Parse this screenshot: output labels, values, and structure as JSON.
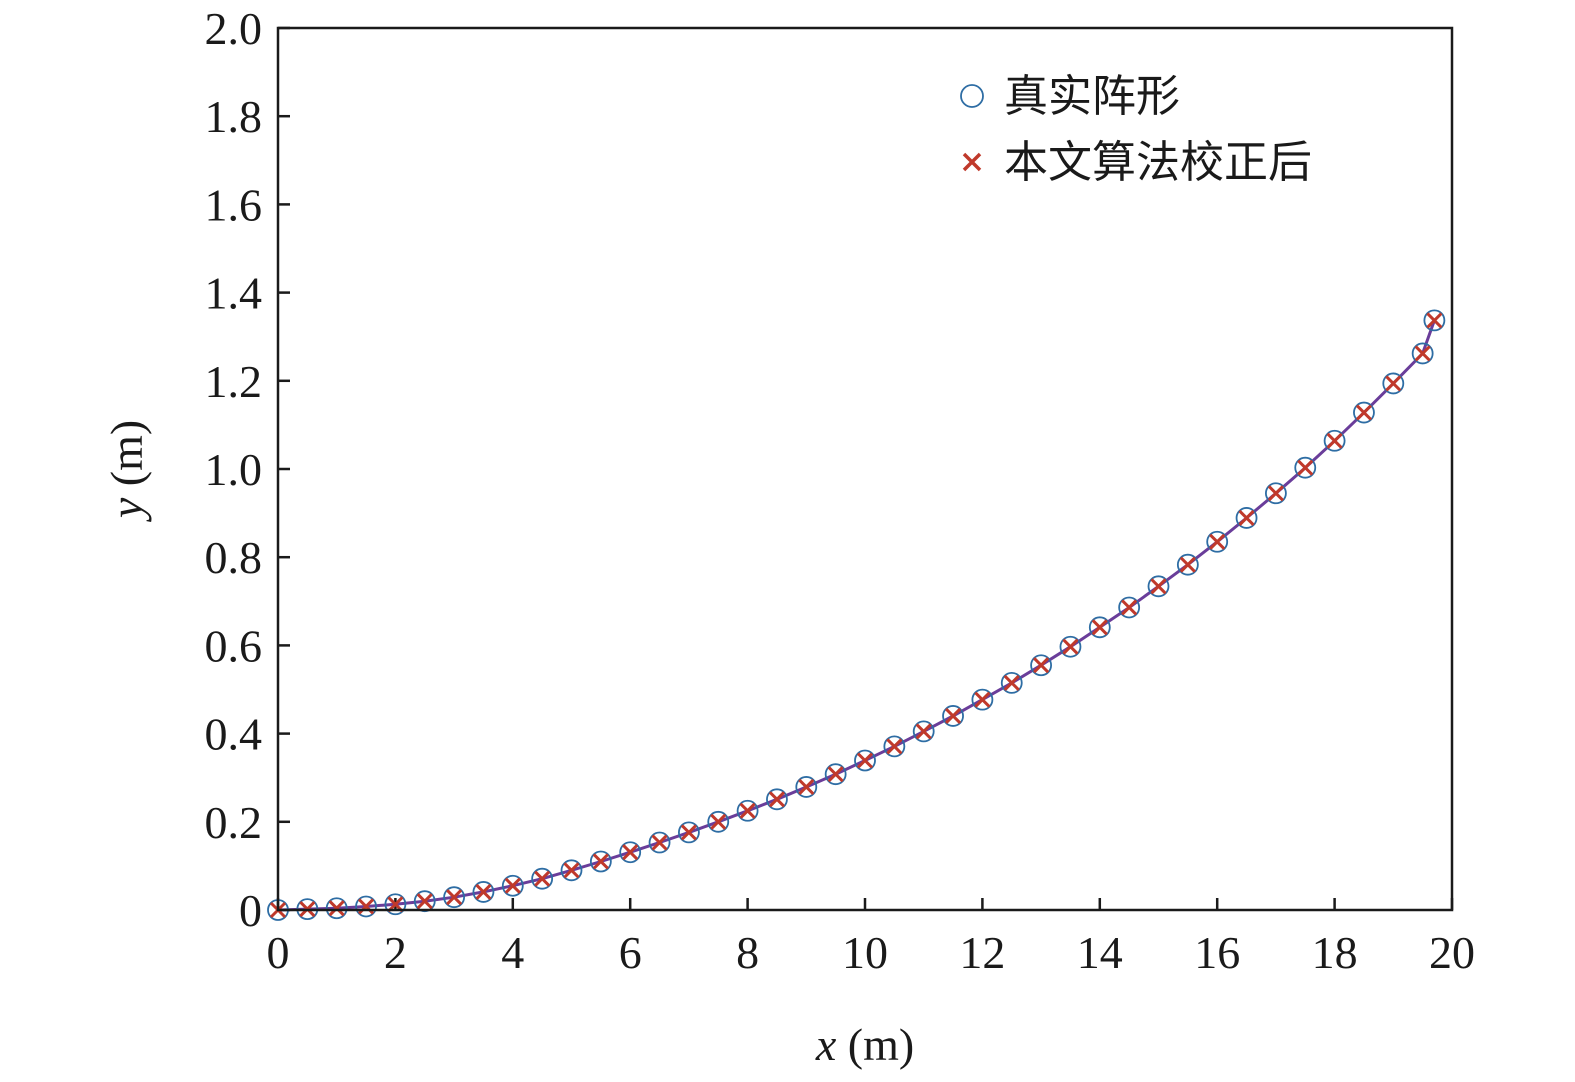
{
  "chart_data": {
    "type": "scatter",
    "title": "",
    "xlabel": {
      "var": "x",
      "unit": " (m)"
    },
    "ylabel": {
      "var": "y",
      "unit": " (m)"
    },
    "xlim": [
      0,
      20
    ],
    "ylim": [
      0,
      2.0
    ],
    "x_ticks": [
      0,
      2,
      4,
      6,
      8,
      10,
      12,
      14,
      16,
      18,
      20
    ],
    "x_tick_labels": [
      "0",
      "2",
      "4",
      "6",
      "8",
      "10",
      "12",
      "14",
      "16",
      "18",
      "20"
    ],
    "y_ticks": [
      0,
      0.2,
      0.4,
      0.6,
      0.8,
      1.0,
      1.2,
      1.4,
      1.6,
      1.8,
      2.0
    ],
    "y_tick_labels": [
      "0",
      "0.2",
      "0.4",
      "0.6",
      "0.8",
      "1.0",
      "1.2",
      "1.4",
      "1.6",
      "1.8",
      "2.0"
    ],
    "grid": false,
    "legend_position": "top-right",
    "line": {
      "color": "#6a3d9a",
      "x": [
        0,
        0.5,
        1,
        1.5,
        2,
        2.5,
        3,
        3.5,
        4,
        4.5,
        5,
        5.5,
        6,
        6.5,
        7,
        7.5,
        8,
        8.5,
        9,
        9.5,
        10,
        10.5,
        11,
        11.5,
        12,
        12.5,
        13,
        13.5,
        14,
        14.5,
        15,
        15.5,
        16,
        16.5,
        17,
        17.5,
        18,
        18.5,
        19,
        19.5,
        19.7
      ],
      "y": [
        0,
        0.002,
        0.004,
        0.008,
        0.013,
        0.02,
        0.029,
        0.041,
        0.055,
        0.071,
        0.09,
        0.11,
        0.131,
        0.153,
        0.176,
        0.2,
        0.225,
        0.251,
        0.279,
        0.308,
        0.339,
        0.371,
        0.405,
        0.44,
        0.477,
        0.515,
        0.555,
        0.597,
        0.641,
        0.686,
        0.734,
        0.783,
        0.835,
        0.889,
        0.945,
        1.003,
        1.064,
        1.128,
        1.194,
        1.262,
        1.337
      ]
    },
    "series": [
      {
        "name": "真实阵形",
        "marker": "circle",
        "color": "#2e6da4",
        "x": [
          0,
          0.5,
          1,
          1.5,
          2,
          2.5,
          3,
          3.5,
          4,
          4.5,
          5,
          5.5,
          6,
          6.5,
          7,
          7.5,
          8,
          8.5,
          9,
          9.5,
          10,
          10.5,
          11,
          11.5,
          12,
          12.5,
          13,
          13.5,
          14,
          14.5,
          15,
          15.5,
          16,
          16.5,
          17,
          17.5,
          18,
          18.5,
          19,
          19.5,
          19.7
        ],
        "y": [
          0,
          0.002,
          0.004,
          0.008,
          0.013,
          0.02,
          0.029,
          0.041,
          0.055,
          0.071,
          0.09,
          0.11,
          0.131,
          0.153,
          0.176,
          0.2,
          0.225,
          0.251,
          0.279,
          0.308,
          0.339,
          0.371,
          0.405,
          0.44,
          0.477,
          0.515,
          0.555,
          0.597,
          0.641,
          0.686,
          0.734,
          0.783,
          0.835,
          0.889,
          0.945,
          1.003,
          1.064,
          1.128,
          1.194,
          1.262,
          1.337
        ]
      },
      {
        "name": "本文算法校正后",
        "marker": "cross",
        "color": "#c0392b",
        "x": [
          0,
          0.5,
          1,
          1.5,
          2,
          2.5,
          3,
          3.5,
          4,
          4.5,
          5,
          5.5,
          6,
          6.5,
          7,
          7.5,
          8,
          8.5,
          9,
          9.5,
          10,
          10.5,
          11,
          11.5,
          12,
          12.5,
          13,
          13.5,
          14,
          14.5,
          15,
          15.5,
          16,
          16.5,
          17,
          17.5,
          18,
          18.5,
          19,
          19.5,
          19.7
        ],
        "y": [
          0,
          0.002,
          0.004,
          0.008,
          0.013,
          0.02,
          0.029,
          0.041,
          0.055,
          0.071,
          0.09,
          0.11,
          0.131,
          0.153,
          0.176,
          0.2,
          0.225,
          0.251,
          0.279,
          0.308,
          0.339,
          0.371,
          0.405,
          0.44,
          0.477,
          0.515,
          0.555,
          0.597,
          0.641,
          0.686,
          0.734,
          0.783,
          0.835,
          0.889,
          0.945,
          1.003,
          1.064,
          1.128,
          1.194,
          1.262,
          1.337
        ]
      }
    ]
  }
}
